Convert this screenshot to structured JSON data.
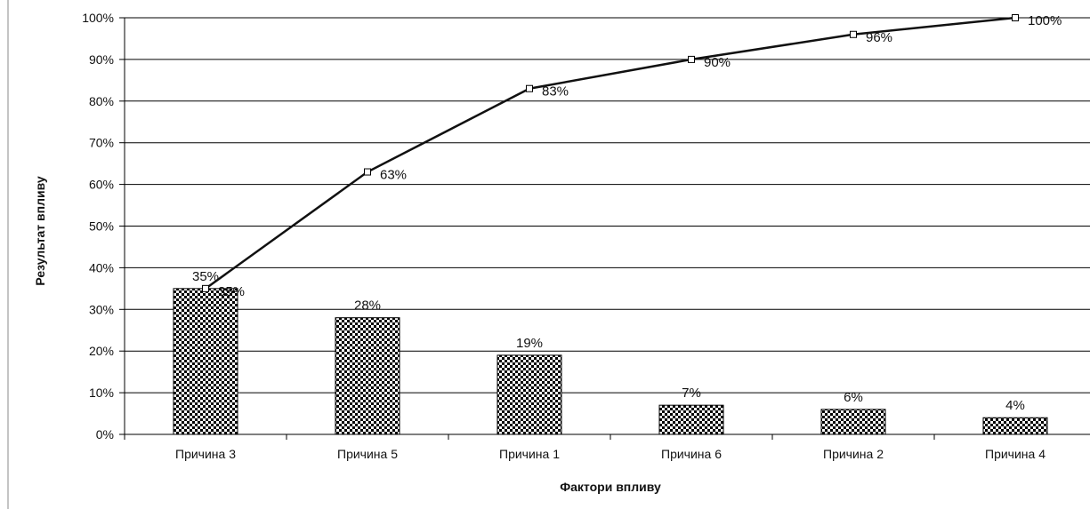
{
  "chart_data": {
    "type": "bar",
    "categories": [
      "Причина 3",
      "Причина 5",
      "Причина 1",
      "Причина 6",
      "Причина 2",
      "Причина 4"
    ],
    "series": [
      {
        "type": "bar",
        "values": [
          35,
          28,
          19,
          7,
          6,
          4
        ],
        "labels": [
          "35%",
          "28%",
          "19%",
          "7%",
          "6%",
          "4%"
        ]
      },
      {
        "type": "line",
        "values": [
          35,
          63,
          83,
          90,
          96,
          100
        ],
        "labels": [
          "35%",
          "63%",
          "83%",
          "90%",
          "96%",
          "100%"
        ]
      }
    ],
    "xlabel": "Фактори впливу",
    "ylabel": "Результат впливу",
    "ylim": [
      0,
      100
    ],
    "yticks": [
      "0%",
      "10%",
      "20%",
      "30%",
      "40%",
      "50%",
      "60%",
      "70%",
      "80%",
      "90%",
      "100%"
    ],
    "grid": true,
    "colors": {
      "bar_dark": "#000000",
      "bar_light": "#ffffff",
      "line": "#111111",
      "grid": "#000000"
    }
  }
}
